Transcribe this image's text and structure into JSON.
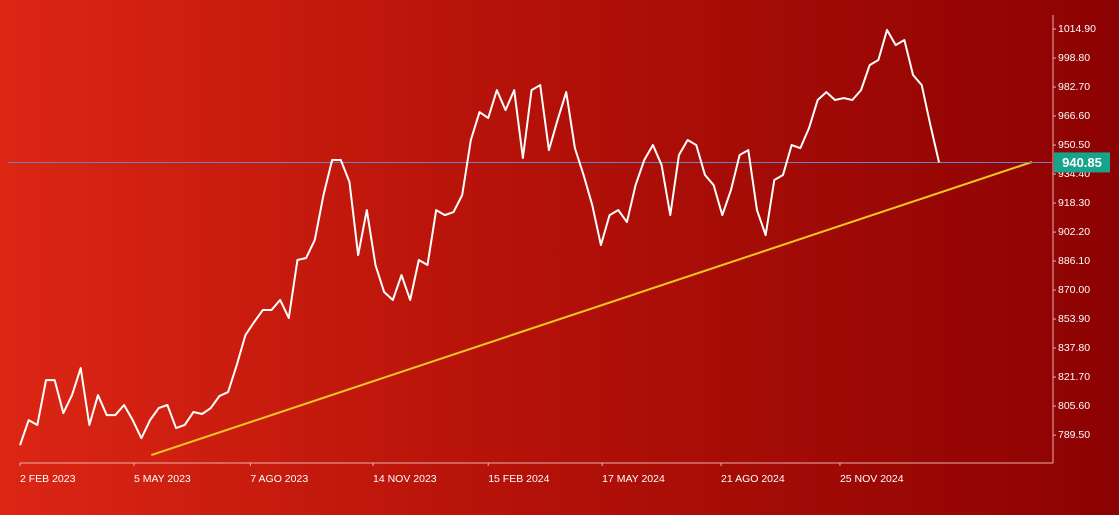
{
  "chart_data": {
    "type": "line",
    "color": "#ffffff",
    "x": [
      "2023-02-02",
      "2023-02-09",
      "2023-02-16",
      "2023-02-23",
      "2023-03-02",
      "2023-03-09",
      "2023-03-16",
      "2023-03-23",
      "2023-03-30",
      "2023-04-06",
      "2023-04-13",
      "2023-04-20",
      "2023-04-27",
      "2023-05-04",
      "2023-05-11",
      "2023-05-18",
      "2023-05-25",
      "2023-06-01",
      "2023-06-08",
      "2023-06-15",
      "2023-06-22",
      "2023-06-29",
      "2023-07-06",
      "2023-07-13",
      "2023-07-20",
      "2023-07-27",
      "2023-08-03",
      "2023-08-10",
      "2023-08-17",
      "2023-08-24",
      "2023-08-31",
      "2023-09-07",
      "2023-09-14",
      "2023-09-21",
      "2023-09-28",
      "2023-10-05",
      "2023-10-12",
      "2023-10-19",
      "2023-10-26",
      "2023-11-02",
      "2023-11-09",
      "2023-11-16",
      "2023-11-23",
      "2023-11-30",
      "2023-12-07",
      "2023-12-14",
      "2023-12-21",
      "2023-12-28",
      "2024-01-04",
      "2024-01-11",
      "2024-01-18",
      "2024-01-25",
      "2024-02-01",
      "2024-02-08",
      "2024-02-15",
      "2024-02-22",
      "2024-02-29",
      "2024-03-07",
      "2024-03-14",
      "2024-03-21",
      "2024-03-28",
      "2024-04-04",
      "2024-04-11",
      "2024-04-18",
      "2024-04-25",
      "2024-05-02",
      "2024-05-09",
      "2024-05-16",
      "2024-05-23",
      "2024-05-30",
      "2024-06-06",
      "2024-06-13",
      "2024-06-20",
      "2024-06-27",
      "2024-07-04",
      "2024-07-11",
      "2024-07-18",
      "2024-07-25",
      "2024-08-01",
      "2024-08-08",
      "2024-08-15",
      "2024-08-22",
      "2024-08-29",
      "2024-09-05",
      "2024-09-12",
      "2024-09-19",
      "2024-09-26",
      "2024-10-03",
      "2024-10-10",
      "2024-10-17",
      "2024-10-24",
      "2024-10-31",
      "2024-11-07",
      "2024-11-14",
      "2024-11-21",
      "2024-11-28",
      "2024-12-05",
      "2024-12-12",
      "2024-12-19",
      "2024-12-26",
      "2025-01-02",
      "2025-01-09",
      "2025-01-16",
      "2025-01-23",
      "2025-01-30",
      "2025-02-06",
      "2025-02-13"
    ],
    "values": [
      783.9,
      797.8,
      795.1,
      820.0,
      820.0,
      801.7,
      811.7,
      826.7,
      795.1,
      811.7,
      800.6,
      800.6,
      806.2,
      797.8,
      787.8,
      797.8,
      804.5,
      806.2,
      793.4,
      795.1,
      802.3,
      801.2,
      804.5,
      811.2,
      813.4,
      828.4,
      845.0,
      852.2,
      858.9,
      858.9,
      864.5,
      854.5,
      886.7,
      887.8,
      897.8,
      922.7,
      942.2,
      942.2,
      930.0,
      889.4,
      914.4,
      883.9,
      868.9,
      864.5,
      878.3,
      864.5,
      886.7,
      883.9,
      914.4,
      911.6,
      913.3,
      922.7,
      953.3,
      968.8,
      965.5,
      981.0,
      969.9,
      981.0,
      943.3,
      981.0,
      983.8,
      947.7,
      964.4,
      979.9,
      948.8,
      933.9,
      917.2,
      895.0,
      911.6,
      914.4,
      907.8,
      928.3,
      942.2,
      950.5,
      939.4,
      911.6,
      945.0,
      953.3,
      950.5,
      933.9,
      928.3,
      911.6,
      925.5,
      945.0,
      947.7,
      914.4,
      900.5,
      931.1,
      933.9,
      950.5,
      948.8,
      959.9,
      975.5,
      979.9,
      975.5,
      976.6,
      975.5,
      981.0,
      994.9,
      997.7,
      1014.4,
      1006.0,
      1008.8,
      989.4,
      983.8,
      961.6,
      940.85
    ],
    "last_value": 940.85,
    "last_value_line_color": "#6f7fbf",
    "last_value_badge_color": "#16a58c",
    "trend_line": {
      "x": [
        "2023-05-19",
        "2025-04-29"
      ],
      "values": [
        778.4,
        941.1
      ],
      "color": "#f2c81e"
    },
    "xlim": [
      "2023-02-02",
      "2025-05-16"
    ],
    "xticks": [
      {
        "value": "2023-02-02",
        "label": "2 FEB 2023"
      },
      {
        "value": "2023-05-05",
        "label": "5 MAY 2023"
      },
      {
        "value": "2023-08-07",
        "label": "7 AGO 2023"
      },
      {
        "value": "2023-11-14",
        "label": "14 NOV 2023"
      },
      {
        "value": "2024-02-15",
        "label": "15 FEB 2024"
      },
      {
        "value": "2024-05-17",
        "label": "17 MAY 2024"
      },
      {
        "value": "2024-08-21",
        "label": "21 AGO 2024"
      },
      {
        "value": "2024-11-25",
        "label": "25 NOV 2024"
      }
    ],
    "ylim": [
      774,
      1022.7
    ],
    "yticks": [
      {
        "value": 789.5,
        "label": "789.50"
      },
      {
        "value": 805.6,
        "label": "805.60"
      },
      {
        "value": 821.7,
        "label": "821.70"
      },
      {
        "value": 837.8,
        "label": "837.80"
      },
      {
        "value": 853.9,
        "label": "853.90"
      },
      {
        "value": 870,
        "label": "870.00"
      },
      {
        "value": 886.1,
        "label": "886.10"
      },
      {
        "value": 902.2,
        "label": "902.20"
      },
      {
        "value": 918.3,
        "label": "918.30"
      },
      {
        "value": 934.4,
        "label": "934.40"
      },
      {
        "value": 950.5,
        "label": "950.50"
      },
      {
        "value": 966.6,
        "label": "966.60"
      },
      {
        "value": 982.7,
        "label": "982.70"
      },
      {
        "value": 998.8,
        "label": "998.80"
      },
      {
        "value": 1014.9,
        "label": "1014.90"
      }
    ],
    "grid": false
  }
}
